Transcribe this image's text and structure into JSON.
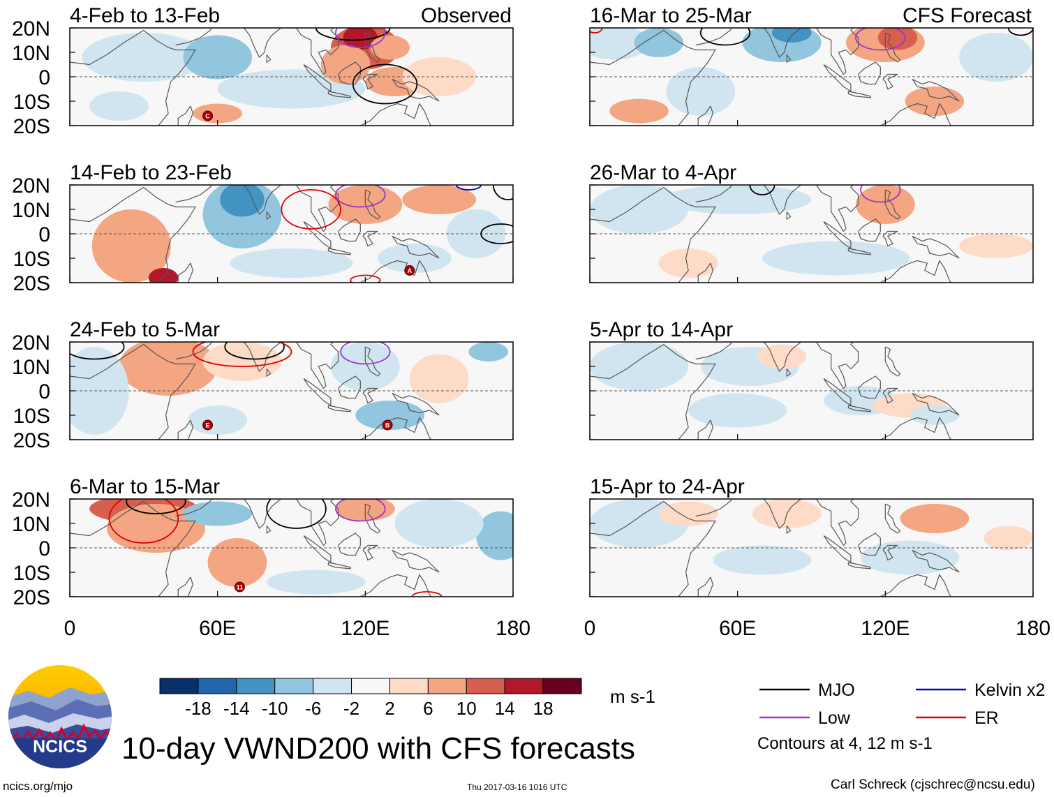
{
  "chart_data": {
    "type": "heatmap",
    "title": "10-day VWND200 with CFS forecasts",
    "variable": "VWND200",
    "colorbar": {
      "unit": "m s-1",
      "ticks": [
        "-18",
        "-14",
        "-10",
        "-6",
        "-2",
        "2",
        "6",
        "10",
        "14",
        "18"
      ],
      "colors": [
        "#08306b",
        "#2166ac",
        "#4393c3",
        "#92c5de",
        "#d1e5f0",
        "#f7f7f7",
        "#fddbc7",
        "#f4a582",
        "#d6604d",
        "#b2182b",
        "#67001f"
      ]
    },
    "x_ticks": [
      "0",
      "60E",
      "120E",
      "180"
    ],
    "y_ticks": [
      "20N",
      "10N",
      "0",
      "10S",
      "20S"
    ],
    "xlim": [
      0,
      180
    ],
    "ylim": [
      -20,
      20
    ],
    "panel_groups": [
      {
        "label": "Observed",
        "panels": [
          "4-Feb to 13-Feb",
          "14-Feb to 23-Feb",
          "24-Feb to 5-Mar",
          "6-Mar to 15-Mar"
        ]
      },
      {
        "label": "CFS Forecast",
        "panels": [
          "16-Mar to 25-Mar",
          "26-Mar to 4-Apr",
          "5-Apr to 14-Apr",
          "15-Apr to 24-Apr"
        ]
      }
    ],
    "storm_markers": [
      {
        "panel": 0,
        "label": "C",
        "lon": 56,
        "lat": -16
      },
      {
        "panel": 1,
        "label": "A",
        "lon": 138,
        "lat": -15
      },
      {
        "panel": 2,
        "label": "E",
        "lon": 56,
        "lat": -14
      },
      {
        "panel": 2,
        "label": "B",
        "lon": 129,
        "lat": -14
      },
      {
        "panel": 3,
        "label": "11",
        "lon": 69,
        "lat": -16
      }
    ],
    "legend": {
      "items": [
        {
          "name": "MJO",
          "color": "#000000"
        },
        {
          "name": "Low",
          "color": "#9932cc"
        },
        {
          "name": "Kelvin x2",
          "color": "#0000cc"
        },
        {
          "name": "ER",
          "color": "#dd0000"
        }
      ],
      "note": "Contours at 4, 12 m s-1"
    }
  },
  "footer": {
    "logo_text": "NCICS",
    "url": "ncics.org/mjo",
    "timestamp": "Thu 2017-03-16 1016 UTC",
    "credit": "Carl Schreck (cjschrec@ncsu.edu)"
  }
}
